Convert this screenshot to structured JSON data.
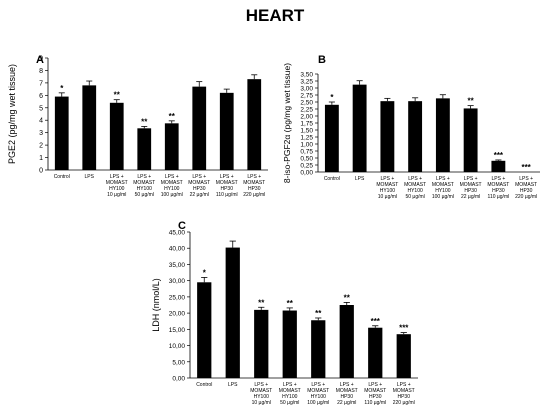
{
  "figure": {
    "title": "HEART"
  },
  "chart_data": [
    {
      "panel": "A",
      "type": "bar",
      "ylabel": "PGE2 (pg/mg wet tissue)",
      "ylim": [
        0,
        9
      ],
      "yticks": [
        0,
        1,
        2,
        3,
        4,
        5,
        6,
        7,
        8,
        9
      ],
      "categories": [
        [
          "Control"
        ],
        [
          "LPS"
        ],
        [
          "LPS +",
          "MOMAST",
          "HY100",
          "10 µg/ml"
        ],
        [
          "LPS +",
          "MOMAST",
          "HY100",
          "50 µg/ml"
        ],
        [
          "LPS +",
          "MOMAST",
          "HY100",
          "100 µg/ml"
        ],
        [
          "LPS +",
          "MOMAST",
          "HP30",
          "22 µg/ml"
        ],
        [
          "LPS +",
          "MOMAST",
          "HP30",
          "110 µg/ml"
        ],
        [
          "LPS +",
          "MOMAST",
          "HP30",
          "220 µg/ml"
        ]
      ],
      "values": [
        5.9,
        6.8,
        5.4,
        3.35,
        3.75,
        6.7,
        6.2,
        7.3
      ],
      "errors": [
        0.3,
        0.35,
        0.25,
        0.15,
        0.2,
        0.4,
        0.3,
        0.35
      ],
      "significance": [
        "*",
        "",
        "**",
        "**",
        "**",
        "",
        "",
        ""
      ]
    },
    {
      "panel": "B",
      "type": "bar",
      "ylabel": "8-iso-PGF2α (pg/mg wet tissue)",
      "ylim": [
        0,
        3.5
      ],
      "yticks": [
        0,
        0.25,
        0.5,
        0.75,
        1,
        1.25,
        1.5,
        1.75,
        2,
        2.25,
        2.5,
        2.75,
        3,
        3.25,
        3.5
      ],
      "ytick_labels": [
        "0,00",
        "0,25",
        "0,50",
        "0,75",
        "1,00",
        "1,25",
        "1,50",
        "1,75",
        "2,00",
        "2,25",
        "2,50",
        "2,75",
        "3,00",
        "3,25",
        "3,50"
      ],
      "categories": [
        [
          "Control"
        ],
        [
          "LPS"
        ],
        [
          "LPS +",
          "MOMAST",
          "HY100",
          "10 µg/ml"
        ],
        [
          "LPS +",
          "MOMAST",
          "HY100",
          "50 µg/ml"
        ],
        [
          "LPS +",
          "MOMAST",
          "HY100",
          "100 µg/ml"
        ],
        [
          "LPS +",
          "MOMAST",
          "HP30",
          "22 µg/ml"
        ],
        [
          "LPS +",
          "MOMAST",
          "HP30",
          "110 µg/ml"
        ],
        [
          "LPS +",
          "MOMAST",
          "HP30",
          "220 µg/ml"
        ]
      ],
      "values": [
        2.4,
        3.12,
        2.53,
        2.53,
        2.63,
        2.27,
        0.4,
        0.0
      ],
      "errors": [
        0.1,
        0.14,
        0.1,
        0.12,
        0.13,
        0.1,
        0.03,
        0
      ],
      "significance": [
        "*",
        "",
        "",
        "",
        "",
        "**",
        "***",
        "***"
      ]
    },
    {
      "panel": "C",
      "type": "bar",
      "ylabel": "LDH (nmol/L)",
      "ylim": [
        0,
        45
      ],
      "yticks": [
        0,
        5,
        10,
        15,
        20,
        25,
        30,
        35,
        40,
        45
      ],
      "ytick_labels": [
        "0,00",
        "5,00",
        "10,00",
        "15,00",
        "20,00",
        "25,00",
        "30,00",
        "35,00",
        "40,00",
        "45,00"
      ],
      "categories": [
        [
          "Control"
        ],
        [
          "LPS"
        ],
        [
          "LPS +",
          "MOMAST",
          "HY100",
          "10 µg/ml"
        ],
        [
          "LPS +",
          "MOMAST",
          "HY100",
          "50 µg/ml"
        ],
        [
          "LPS +",
          "MOMAST",
          "HY100",
          "100 µg/ml"
        ],
        [
          "LPS +",
          "MOMAST",
          "HP30",
          "22 µg/ml"
        ],
        [
          "LPS +",
          "MOMAST",
          "HP30",
          "110 µg/ml"
        ],
        [
          "LPS +",
          "MOMAST",
          "HP30",
          "220 µg/ml"
        ]
      ],
      "values": [
        29.5,
        40.2,
        21.0,
        20.8,
        17.8,
        22.5,
        15.5,
        13.5
      ],
      "errors": [
        1.5,
        2.0,
        0.8,
        0.8,
        0.7,
        0.8,
        0.6,
        0.5
      ],
      "significance": [
        "*",
        "",
        "**",
        "**",
        "**",
        "**",
        "***",
        "***"
      ]
    }
  ]
}
